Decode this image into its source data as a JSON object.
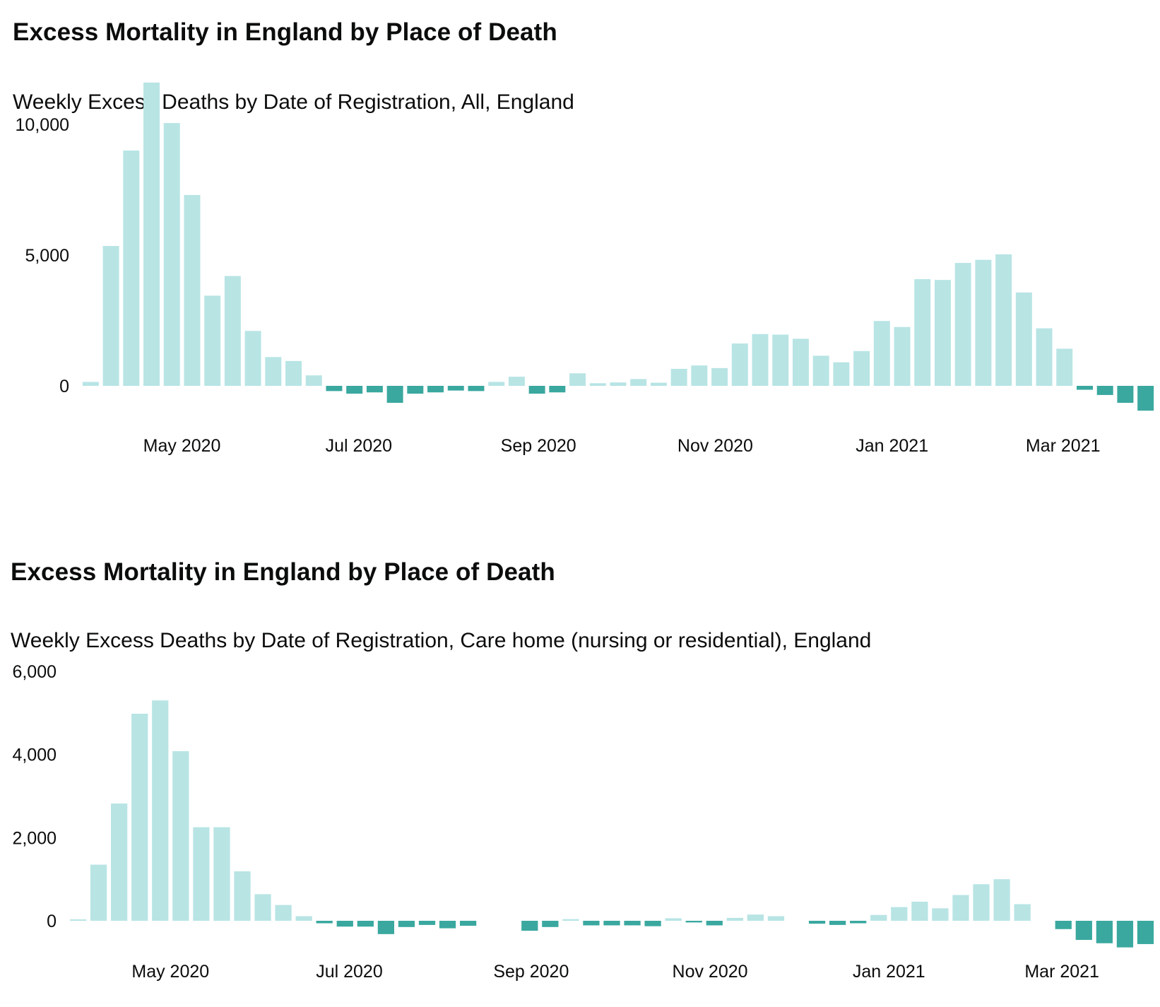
{
  "colors": {
    "positive": "#b8e4e4",
    "negative": "#3aa89f"
  },
  "chart_data": [
    {
      "type": "bar",
      "title": "Excess Mortality in England by Place of Death",
      "subtitle": "Weekly Excess Deaths by Date of Registration, All, England",
      "xlabel": "",
      "ylabel": "",
      "x_start": "2020-03-27",
      "x_step_days": 7,
      "x_ticks": [
        {
          "date": "2020-05-01",
          "label": "May 2020"
        },
        {
          "date": "2020-07-01",
          "label": "Jul 2020"
        },
        {
          "date": "2020-09-01",
          "label": "Sep 2020"
        },
        {
          "date": "2020-11-01",
          "label": "Nov 2020"
        },
        {
          "date": "2021-01-01",
          "label": "Jan 2021"
        },
        {
          "date": "2021-03-01",
          "label": "Mar 2021"
        }
      ],
      "y_ticks": [
        {
          "value": 0,
          "label": "0"
        },
        {
          "value": 5000,
          "label": "5,000"
        },
        {
          "value": 10000,
          "label": "10,000"
        }
      ],
      "ylim": [
        -1000,
        11600
      ],
      "grid": false,
      "values": [
        150,
        5350,
        9000,
        11600,
        10050,
        7300,
        3450,
        4200,
        2100,
        1100,
        950,
        400,
        -200,
        -300,
        -250,
        -650,
        -300,
        -250,
        -180,
        -200,
        150,
        350,
        -300,
        -250,
        480,
        100,
        130,
        260,
        120,
        650,
        780,
        680,
        1620,
        1980,
        1960,
        1800,
        1150,
        900,
        1330,
        2480,
        2250,
        4080,
        4050,
        4700,
        4820,
        5030,
        3570,
        2200,
        1420,
        -150,
        -350,
        -650,
        -950
      ]
    },
    {
      "type": "bar",
      "title": "Excess Mortality in England by Place of Death",
      "subtitle": "Weekly Excess Deaths by Date of Registration, Care home (nursing or residential), England",
      "xlabel": "",
      "ylabel": "",
      "x_start": "2020-03-27",
      "x_step_days": 7,
      "x_ticks": [
        {
          "date": "2020-05-01",
          "label": "May 2020"
        },
        {
          "date": "2020-07-01",
          "label": "Jul 2020"
        },
        {
          "date": "2020-09-01",
          "label": "Sep 2020"
        },
        {
          "date": "2020-11-01",
          "label": "Nov 2020"
        },
        {
          "date": "2021-01-01",
          "label": "Jan 2021"
        },
        {
          "date": "2021-03-01",
          "label": "Mar 2021"
        }
      ],
      "y_ticks": [
        {
          "value": 0,
          "label": "0"
        },
        {
          "value": 2000,
          "label": "2,000"
        },
        {
          "value": 4000,
          "label": "4,000"
        },
        {
          "value": 6000,
          "label": "6,000"
        }
      ],
      "ylim": [
        -700,
        6000
      ],
      "grid": false,
      "values": [
        20,
        1350,
        2820,
        4980,
        5300,
        4080,
        2250,
        2250,
        1190,
        640,
        380,
        110,
        -60,
        -140,
        -140,
        -320,
        -150,
        -100,
        -180,
        -120,
        0,
        0,
        -240,
        -150,
        40,
        -110,
        -110,
        -110,
        -130,
        60,
        -40,
        -110,
        70,
        150,
        110,
        0,
        -70,
        -100,
        -60,
        140,
        330,
        460,
        300,
        620,
        880,
        1000,
        400,
        0,
        -200,
        -460,
        -540,
        -640,
        -560
      ]
    }
  ]
}
